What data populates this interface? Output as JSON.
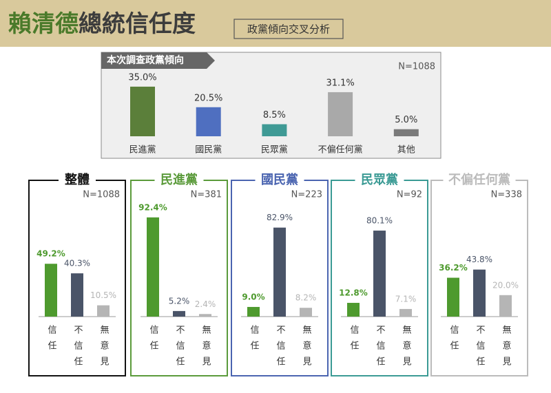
{
  "header": {
    "title_highlight": "賴清德",
    "title": "總統信任度",
    "subtitle": "政黨傾向交叉分析"
  },
  "chart_data": [
    {
      "type": "bar",
      "title": "本次調查政黨傾向",
      "note": "N=1088",
      "categories": [
        "民進黨",
        "國民黨",
        "民眾黨",
        "不偏任何黨",
        "其他"
      ],
      "values": [
        35.0,
        20.5,
        8.5,
        31.1,
        5.0
      ],
      "value_labels": [
        "35.0%",
        "20.5%",
        "8.5%",
        "31.1%",
        "5.0%"
      ],
      "colors": [
        "#5b7f3a",
        "#4f6fc0",
        "#3f9a95",
        "#a9a9a9",
        "#7a7a7a"
      ]
    },
    {
      "type": "bar",
      "title": "整體",
      "note": "N=1088",
      "frame_color": "#111111",
      "categories": [
        "信任",
        "不信任",
        "無意見"
      ],
      "values": [
        49.2,
        40.3,
        10.5
      ],
      "value_labels": [
        "49.2%",
        "40.3%",
        "10.5%"
      ],
      "colors": [
        "#4e9a2e",
        "#4a5468",
        "#b5b5b5"
      ]
    },
    {
      "type": "bar",
      "title": "民進黨",
      "note": "N=381",
      "frame_color": "#5a9a3a",
      "categories": [
        "信任",
        "不信任",
        "無意見"
      ],
      "values": [
        92.4,
        5.2,
        2.4
      ],
      "value_labels": [
        "92.4%",
        "5.2%",
        "2.4%"
      ],
      "colors": [
        "#4e9a2e",
        "#4a5468",
        "#b5b5b5"
      ]
    },
    {
      "type": "bar",
      "title": "國民黨",
      "note": "N=223",
      "frame_color": "#4a64b0",
      "categories": [
        "信任",
        "不信任",
        "無意見"
      ],
      "values": [
        9.0,
        82.9,
        8.2
      ],
      "value_labels": [
        "9.0%",
        "82.9%",
        "8.2%"
      ],
      "colors": [
        "#4e9a2e",
        "#4a5468",
        "#b5b5b5"
      ]
    },
    {
      "type": "bar",
      "title": "民眾黨",
      "note": "N=92",
      "frame_color": "#3a9a94",
      "categories": [
        "信任",
        "不信任",
        "無意見"
      ],
      "values": [
        12.8,
        80.1,
        7.1
      ],
      "value_labels": [
        "12.8%",
        "80.1%",
        "7.1%"
      ],
      "colors": [
        "#4e9a2e",
        "#4a5468",
        "#b5b5b5"
      ]
    },
    {
      "type": "bar",
      "title": "不偏任何黨",
      "note": "N=338",
      "frame_color": "#bbbbbb",
      "categories": [
        "信任",
        "不信任",
        "無意見"
      ],
      "values": [
        36.2,
        43.8,
        20.0
      ],
      "value_labels": [
        "36.2%",
        "43.8%",
        "20.0%"
      ],
      "colors": [
        "#4e9a2e",
        "#4a5468",
        "#b5b5b5"
      ]
    }
  ]
}
